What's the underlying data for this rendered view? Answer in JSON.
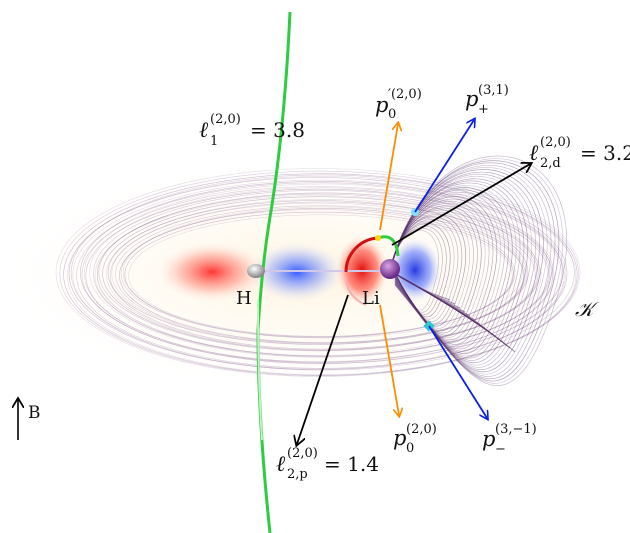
{
  "labels": {
    "H": "H",
    "Li": "Li",
    "K": "𝒦",
    "B": "B",
    "l1": {
      "base": "ℓ",
      "sub": "1",
      "sup": "(2,0)",
      "value": "= 3.8"
    },
    "l2d": {
      "base": "ℓ",
      "sub": "2,d",
      "sup": "(2,0)",
      "value": "= 3.2"
    },
    "l2p": {
      "base": "ℓ",
      "sub": "2,p",
      "sup": "(2,0)",
      "value": "= 1.4"
    },
    "p0prime": {
      "base": "p",
      "sub": "0",
      "sup": "′(2,0)"
    },
    "p0": {
      "base": "p",
      "sub": "0",
      "sup": "(2,0)"
    },
    "pplus": {
      "base": "p",
      "sub": "+",
      "sup": "(3,1)"
    },
    "pminus": {
      "base": "p",
      "sub": "−",
      "sup": "(3,−1)"
    }
  },
  "colors": {
    "orange_arrow": "#ff8c00",
    "blue_arrow": "#0a1fe8",
    "black_arrow": "#000000",
    "green_curve": "#2ecc40",
    "torus_lines": "#6b3b78",
    "kappa_label": "#7a2aa0",
    "red_arc": "#d01010"
  }
}
